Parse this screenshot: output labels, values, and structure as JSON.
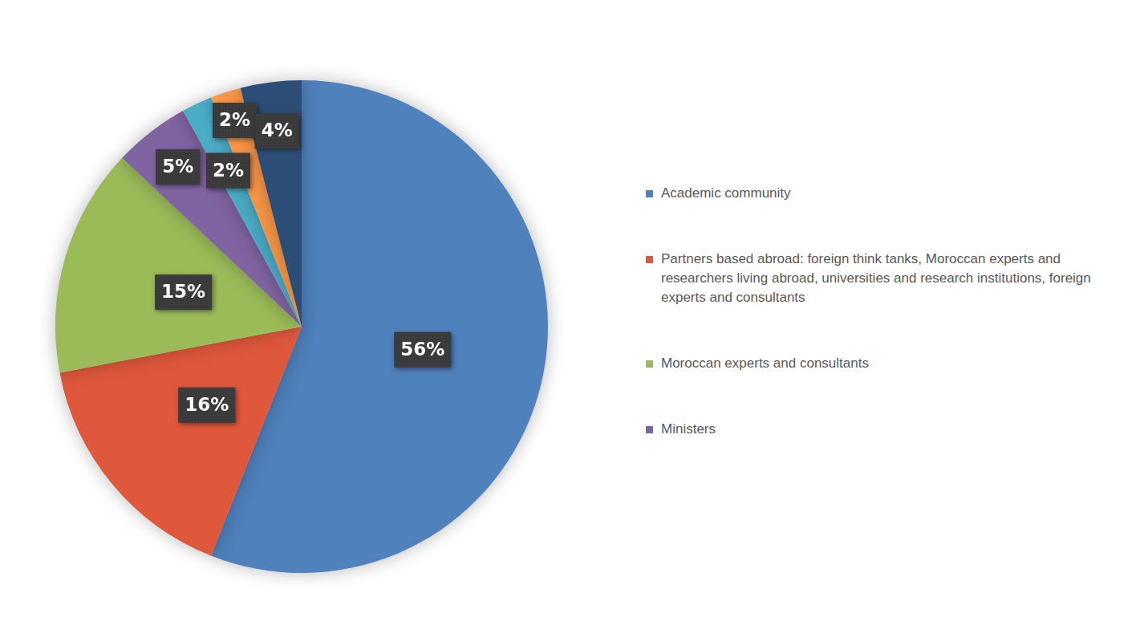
{
  "chart_data": {
    "type": "pie",
    "categories": [
      "Academic community",
      "Partners based abroad: foreign think tanks, Moroccan experts and researchers living abroad, universities and research institutions, foreign experts and consultants",
      "Moroccan experts and consultants",
      "Ministers",
      null,
      null,
      null
    ],
    "values": [
      56,
      16,
      15,
      5,
      2,
      2,
      4
    ],
    "value_labels": [
      "56%",
      "16%",
      "15%",
      "5%",
      "2%",
      "2%",
      "4%"
    ],
    "colors": [
      "#4f81bd",
      "#e0583c",
      "#9bbb59",
      "#8064a2",
      "#4bacc6",
      "#f79646",
      "#2c4d75"
    ],
    "data_labels": true,
    "legend": "right"
  }
}
